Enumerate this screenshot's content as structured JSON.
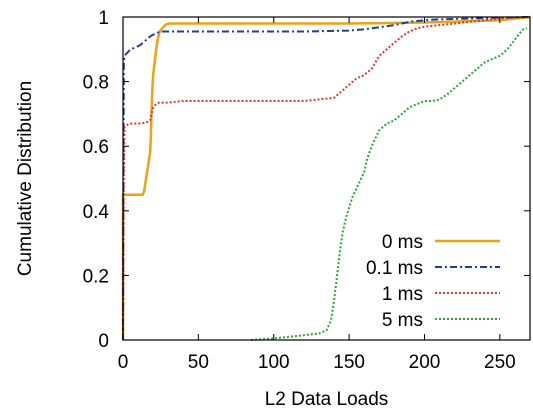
{
  "chart_data": {
    "type": "line",
    "title": "",
    "xlabel": "L2 Data Loads",
    "ylabel": "Cumulative Distribution",
    "xlim": [
      0,
      270
    ],
    "ylim": [
      0,
      1
    ],
    "xticks": [
      "0",
      "50",
      "100",
      "150",
      "200",
      "250"
    ],
    "xtick_values": [
      0,
      50,
      100,
      150,
      200,
      250
    ],
    "yticks": [
      "0",
      "0.2",
      "0.4",
      "0.6",
      "0.8",
      "1"
    ],
    "ytick_values": [
      0,
      0.2,
      0.4,
      0.6,
      0.8,
      1
    ],
    "grid": false,
    "legend_position": "bottom-right",
    "series": [
      {
        "name": "0 ms",
        "color": "#e8a317",
        "dash": "solid",
        "x": [
          0,
          0,
          2,
          13,
          14,
          15,
          16,
          17,
          18,
          18.5,
          19,
          19.5,
          20,
          21,
          22,
          23,
          24,
          25,
          26,
          27,
          28,
          29,
          30,
          31,
          35,
          40,
          60,
          100,
          150,
          200,
          250,
          270
        ],
        "y": [
          0,
          0.45,
          0.45,
          0.45,
          0.46,
          0.49,
          0.52,
          0.55,
          0.58,
          0.63,
          0.72,
          0.78,
          0.82,
          0.86,
          0.9,
          0.93,
          0.95,
          0.96,
          0.965,
          0.97,
          0.975,
          0.978,
          0.979,
          0.98,
          0.98,
          0.98,
          0.98,
          0.98,
          0.98,
          0.983,
          0.99,
          1.0
        ]
      },
      {
        "name": "0.1 ms",
        "color": "#1f3d99",
        "dash": "dashdot",
        "x": [
          0,
          0.5,
          1,
          2,
          3,
          5,
          8,
          10,
          12,
          14,
          16,
          18,
          20,
          22,
          25,
          30,
          40,
          60,
          80,
          100,
          120,
          150,
          160,
          170,
          180,
          185,
          190,
          200,
          210,
          230,
          250,
          270
        ],
        "y": [
          0,
          0.86,
          0.88,
          0.885,
          0.89,
          0.9,
          0.905,
          0.91,
          0.915,
          0.925,
          0.93,
          0.94,
          0.945,
          0.95,
          0.955,
          0.955,
          0.955,
          0.955,
          0.955,
          0.955,
          0.955,
          0.958,
          0.962,
          0.968,
          0.975,
          0.98,
          0.985,
          0.99,
          0.993,
          0.995,
          0.998,
          1.0
        ]
      },
      {
        "name": "1 ms",
        "color": "#d43a2f",
        "dash": "dotted",
        "x": [
          0,
          0.5,
          1,
          2,
          5,
          10,
          14,
          16,
          18,
          19,
          20,
          22,
          24,
          26,
          30,
          40,
          60,
          80,
          100,
          120,
          140,
          145,
          150,
          155,
          160,
          165,
          170,
          175,
          180,
          185,
          190,
          195,
          200,
          210,
          220,
          230,
          240,
          250,
          260,
          270
        ],
        "y": [
          0,
          0.5,
          0.66,
          0.665,
          0.67,
          0.67,
          0.672,
          0.675,
          0.68,
          0.7,
          0.72,
          0.73,
          0.735,
          0.735,
          0.735,
          0.74,
          0.74,
          0.74,
          0.74,
          0.74,
          0.75,
          0.77,
          0.79,
          0.81,
          0.82,
          0.84,
          0.88,
          0.9,
          0.92,
          0.94,
          0.955,
          0.965,
          0.97,
          0.975,
          0.98,
          0.985,
          0.99,
          0.995,
          0.998,
          1.0
        ]
      },
      {
        "name": "5 ms",
        "color": "#2aa33a",
        "dash": "dotted",
        "x": [
          85,
          100,
          110,
          120,
          130,
          135,
          138,
          140,
          142,
          144,
          146,
          148,
          150,
          152,
          154,
          156,
          158,
          160,
          162,
          165,
          168,
          170,
          175,
          180,
          185,
          190,
          195,
          200,
          205,
          210,
          215,
          220,
          225,
          230,
          235,
          240,
          245,
          250,
          255,
          260,
          265,
          268
        ],
        "y": [
          0,
          0.005,
          0.01,
          0.015,
          0.02,
          0.03,
          0.06,
          0.12,
          0.2,
          0.28,
          0.34,
          0.38,
          0.41,
          0.44,
          0.46,
          0.48,
          0.5,
          0.52,
          0.56,
          0.6,
          0.63,
          0.65,
          0.67,
          0.68,
          0.7,
          0.72,
          0.73,
          0.74,
          0.74,
          0.745,
          0.76,
          0.78,
          0.8,
          0.82,
          0.84,
          0.86,
          0.87,
          0.88,
          0.9,
          0.93,
          0.96,
          0.965
        ]
      }
    ]
  }
}
